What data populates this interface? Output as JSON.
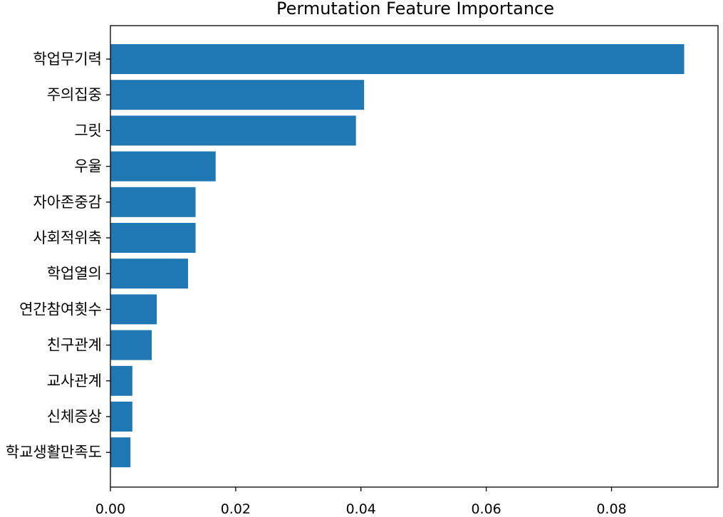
{
  "chart_data": {
    "type": "bar",
    "orientation": "horizontal",
    "title": "Permutation Feature Importance",
    "xlabel": "",
    "ylabel": "",
    "categories": [
      "학업무기력",
      "주의집중",
      "그릿",
      "우울",
      "자아존중감",
      "사회적위축",
      "학업열의",
      "연간참여횟수",
      "친구관계",
      "교사관계",
      "신체증상",
      "학교생활만족도"
    ],
    "values": [
      0.0916,
      0.0405,
      0.0392,
      0.0168,
      0.0136,
      0.0136,
      0.0124,
      0.0074,
      0.0066,
      0.0035,
      0.0035,
      0.0032
    ],
    "xlim": [
      0,
      0.097
    ],
    "xticks": [
      "0.00",
      "0.02",
      "0.04",
      "0.06",
      "0.08"
    ],
    "bar_color": "#1f77b4",
    "grid": false,
    "legend": "none"
  }
}
